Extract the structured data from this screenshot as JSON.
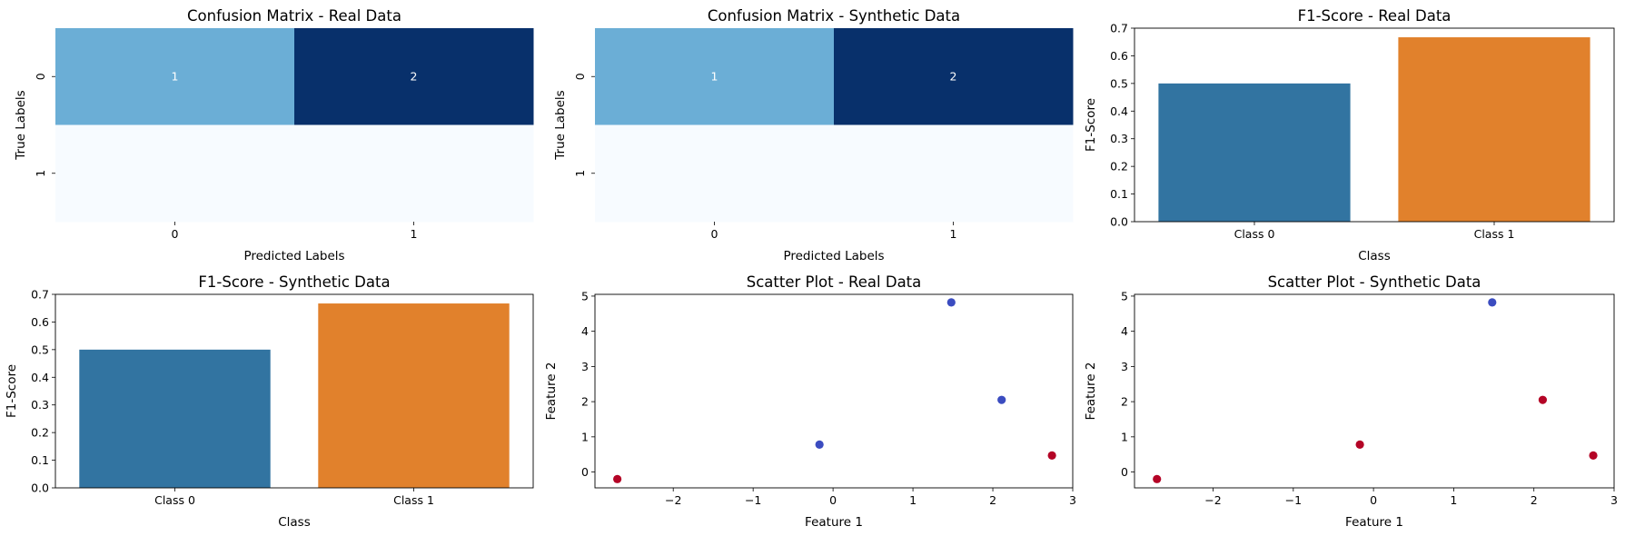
{
  "chart_data": [
    {
      "type": "heatmap",
      "title": "Confusion Matrix - Real Data",
      "xlabel": "Predicted Labels",
      "ylabel": "True Labels",
      "x_ticks": [
        "0",
        "1"
      ],
      "y_ticks": [
        "0",
        "1"
      ],
      "matrix": [
        [
          1,
          2
        ],
        [
          0,
          0
        ]
      ],
      "annotations": [
        [
          "1",
          "2"
        ],
        [
          "",
          ""
        ]
      ],
      "colormap": [
        "#f7fbff",
        "#6baed6",
        "#08306b"
      ]
    },
    {
      "type": "heatmap",
      "title": "Confusion Matrix - Synthetic Data",
      "xlabel": "Predicted Labels",
      "ylabel": "True Labels",
      "x_ticks": [
        "0",
        "1"
      ],
      "y_ticks": [
        "0",
        "1"
      ],
      "matrix": [
        [
          1,
          2
        ],
        [
          0,
          0
        ]
      ],
      "annotations": [
        [
          "1",
          "2"
        ],
        [
          "",
          ""
        ]
      ],
      "colormap": [
        "#f7fbff",
        "#6baed6",
        "#08306b"
      ]
    },
    {
      "type": "bar",
      "title": "F1-Score - Real Data",
      "xlabel": "Class",
      "ylabel": "F1-Score",
      "categories": [
        "Class 0",
        "Class 1"
      ],
      "values": [
        0.5,
        0.667
      ],
      "colors": [
        "#3274a1",
        "#e1812c"
      ],
      "ylim": [
        0,
        0.7
      ],
      "yticks": [
        "0.0",
        "0.1",
        "0.2",
        "0.3",
        "0.4",
        "0.5",
        "0.6",
        "0.7"
      ]
    },
    {
      "type": "bar",
      "title": "F1-Score - Synthetic Data",
      "xlabel": "Class",
      "ylabel": "F1-Score",
      "categories": [
        "Class 0",
        "Class 1"
      ],
      "values": [
        0.5,
        0.667
      ],
      "colors": [
        "#3274a1",
        "#e1812c"
      ],
      "ylim": [
        0,
        0.7
      ],
      "yticks": [
        "0.0",
        "0.1",
        "0.2",
        "0.3",
        "0.4",
        "0.5",
        "0.6",
        "0.7"
      ]
    },
    {
      "type": "scatter",
      "title": "Scatter Plot - Real Data",
      "xlabel": "Feature 1",
      "ylabel": "Feature 2",
      "xlim": [
        -2.98,
        3.0
      ],
      "ylim": [
        -0.45,
        5.05
      ],
      "xticks": [
        "−2",
        "−1",
        "0",
        "1",
        "2",
        "3"
      ],
      "yticks": [
        "0",
        "1",
        "2",
        "3",
        "4",
        "5"
      ],
      "points": [
        {
          "x": -2.7,
          "y": -0.2,
          "color": "#b40426"
        },
        {
          "x": -0.17,
          "y": 0.78,
          "color": "#3b4cc0"
        },
        {
          "x": 1.48,
          "y": 4.82,
          "color": "#3b4cc0"
        },
        {
          "x": 2.11,
          "y": 2.05,
          "color": "#3b4cc0"
        },
        {
          "x": 2.74,
          "y": 0.47,
          "color": "#b40426"
        }
      ]
    },
    {
      "type": "scatter",
      "title": "Scatter Plot - Synthetic Data",
      "xlabel": "Feature 1",
      "ylabel": "Feature 2",
      "xlim": [
        -2.98,
        3.0
      ],
      "ylim": [
        -0.45,
        5.05
      ],
      "xticks": [
        "−2",
        "−1",
        "0",
        "1",
        "2",
        "3"
      ],
      "yticks": [
        "0",
        "1",
        "2",
        "3",
        "4",
        "5"
      ],
      "points": [
        {
          "x": -2.7,
          "y": -0.2,
          "color": "#b40426"
        },
        {
          "x": -0.17,
          "y": 0.78,
          "color": "#b40426"
        },
        {
          "x": 1.48,
          "y": 4.82,
          "color": "#3b4cc0"
        },
        {
          "x": 2.11,
          "y": 2.05,
          "color": "#b40426"
        },
        {
          "x": 2.74,
          "y": 0.47,
          "color": "#b40426"
        }
      ]
    }
  ]
}
